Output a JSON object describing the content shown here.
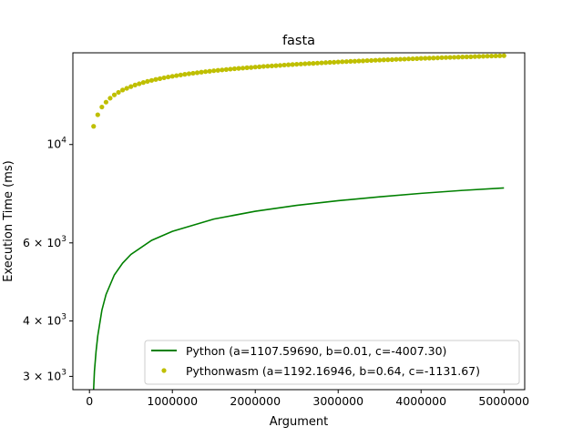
{
  "chart_data": {
    "type": "line",
    "title": "fasta",
    "xlabel": "Argument",
    "ylabel": "Execution Time (ms)",
    "xlim": [
      -200000,
      5250000
    ],
    "ylim": [
      2800,
      16100
    ],
    "yscale": "log",
    "grid": false,
    "legend_position": "lower-right",
    "x_ticks": [
      {
        "value": 0,
        "label": "0"
      },
      {
        "value": 1000000,
        "label": "1000000"
      },
      {
        "value": 2000000,
        "label": "2000000"
      },
      {
        "value": 3000000,
        "label": "3000000"
      },
      {
        "value": 4000000,
        "label": "4000000"
      },
      {
        "value": 5000000,
        "label": "5000000"
      }
    ],
    "y_ticks": [
      {
        "value": 3000,
        "mantissa": "3",
        "base": "10",
        "exp": "3"
      },
      {
        "value": 4000,
        "mantissa": "4",
        "base": "10",
        "exp": "3"
      },
      {
        "value": 6000,
        "mantissa": "6",
        "base": "10",
        "exp": "3"
      },
      {
        "value": 10000,
        "mantissa": "",
        "base": "10",
        "exp": "4"
      }
    ],
    "series": [
      {
        "name": "Python (a=1107.59690, b=0.01, c=-4007.30)",
        "style": "line",
        "color": "#008000",
        "x": [
          50000,
          60000,
          80000,
          100000,
          150000,
          200000,
          300000,
          400000,
          500000,
          750000,
          1000000,
          1500000,
          2000000,
          2500000,
          3000000,
          3500000,
          4000000,
          4500000,
          5000000
        ],
        "y": [
          2800,
          3080,
          3420,
          3700,
          4230,
          4590,
          5080,
          5400,
          5650,
          6080,
          6370,
          6790,
          7070,
          7290,
          7470,
          7620,
          7760,
          7880,
          7980
        ]
      },
      {
        "name": "Pythonwasm (a=1192.16946, b=0.64, c=-1131.67)",
        "style": "points",
        "color": "#bfbf00",
        "x": [
          50000,
          100000,
          150000,
          200000,
          250000,
          300000,
          350000,
          400000,
          450000,
          500000,
          550000,
          600000,
          650000,
          700000,
          750000,
          800000,
          850000,
          900000,
          950000,
          1000000,
          1050000,
          1100000,
          1150000,
          1200000,
          1250000,
          1300000,
          1350000,
          1400000,
          1450000,
          1500000,
          1550000,
          1600000,
          1650000,
          1700000,
          1750000,
          1800000,
          1850000,
          1900000,
          1950000,
          2000000,
          2050000,
          2100000,
          2150000,
          2200000,
          2250000,
          2300000,
          2350000,
          2400000,
          2450000,
          2500000,
          2550000,
          2600000,
          2650000,
          2700000,
          2750000,
          2800000,
          2850000,
          2900000,
          2950000,
          3000000,
          3050000,
          3100000,
          3150000,
          3200000,
          3250000,
          3300000,
          3350000,
          3400000,
          3450000,
          3500000,
          3550000,
          3600000,
          3650000,
          3700000,
          3750000,
          3800000,
          3850000,
          3900000,
          3950000,
          4000000,
          4050000,
          4100000,
          4150000,
          4200000,
          4250000,
          4300000,
          4350000,
          4400000,
          4450000,
          4500000,
          4550000,
          4600000,
          4650000,
          4700000,
          4750000,
          4800000,
          4850000,
          4900000,
          4950000,
          5000000
        ],
        "y": [
          10990,
          11670,
          12150,
          12460,
          12720,
          12940,
          13110,
          13270,
          13390,
          13510,
          13620,
          13710,
          13800,
          13880,
          13950,
          14020,
          14080,
          14140,
          14200,
          14250,
          14300,
          14350,
          14400,
          14440,
          14480,
          14520,
          14560,
          14600,
          14630,
          14670,
          14700,
          14730,
          14760,
          14790,
          14820,
          14850,
          14870,
          14900,
          14920,
          14950,
          14970,
          15000,
          15020,
          15040,
          15060,
          15080,
          15110,
          15130,
          15150,
          15170,
          15190,
          15210,
          15230,
          15240,
          15260,
          15280,
          15300,
          15320,
          15330,
          15350,
          15370,
          15380,
          15400,
          15410,
          15430,
          15440,
          15460,
          15470,
          15490,
          15500,
          15520,
          15530,
          15540,
          15560,
          15570,
          15580,
          15600,
          15610,
          15620,
          15640,
          15650,
          15660,
          15670,
          15680,
          15700,
          15710,
          15720,
          15730,
          15740,
          15750,
          15760,
          15770,
          15790,
          15800,
          15810,
          15820,
          15830,
          15840,
          15850,
          15860
        ]
      }
    ]
  }
}
